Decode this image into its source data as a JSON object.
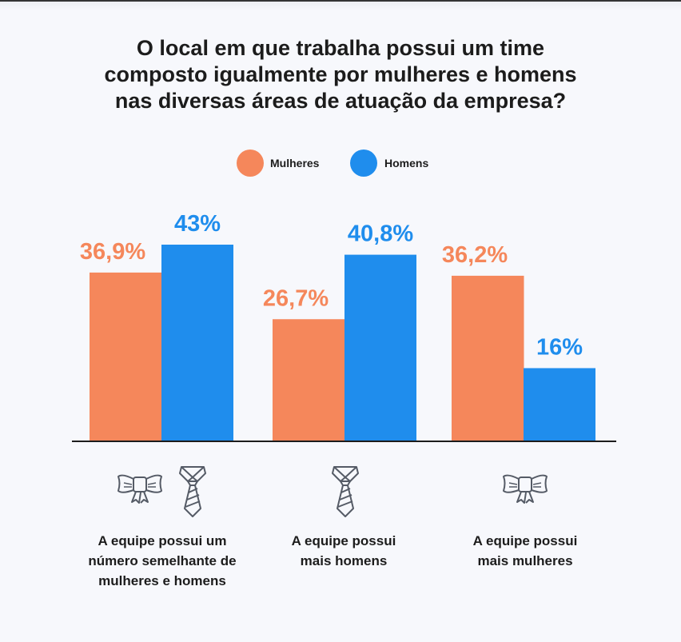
{
  "title_lines": [
    "O local em que trabalha possui um time",
    "composto igualmente por mulheres e homens",
    "nas diversas áreas de atuação da empresa?"
  ],
  "colors": {
    "mulheres": "#f5875b",
    "homens": "#1f8ded",
    "background": "#f7f8fc"
  },
  "chart_data": {
    "type": "bar",
    "title": "O local em que trabalha possui um time composto igualmente por mulheres e homens nas diversas áreas de atuação da empresa?",
    "categories": [
      "A equipe possui um número semelhante de mulheres e homens",
      "A equipe possui mais homens",
      "A equipe possui mais mulheres"
    ],
    "category_lines": [
      [
        "A equipe possui um",
        "número semelhante de",
        "mulheres e homens"
      ],
      [
        "A equipe possui",
        "mais homens"
      ],
      [
        "A equipe possui",
        "mais mulheres"
      ]
    ],
    "category_icons": [
      [
        "bow-tie-icon",
        "necktie-icon"
      ],
      [
        "necktie-icon"
      ],
      [
        "bow-tie-icon"
      ]
    ],
    "series": [
      {
        "name": "Mulheres",
        "values": [
          36.9,
          26.7,
          36.2
        ],
        "labels": [
          "36,9%",
          "26,7%",
          "36,2%"
        ]
      },
      {
        "name": "Homens",
        "values": [
          43,
          40.8,
          16
        ],
        "labels": [
          "43%",
          "40,8%",
          "16%"
        ]
      }
    ],
    "legend_position": "top-center",
    "grid": false,
    "ylim": [
      0,
      43
    ],
    "xlabel": "",
    "ylabel": ""
  }
}
